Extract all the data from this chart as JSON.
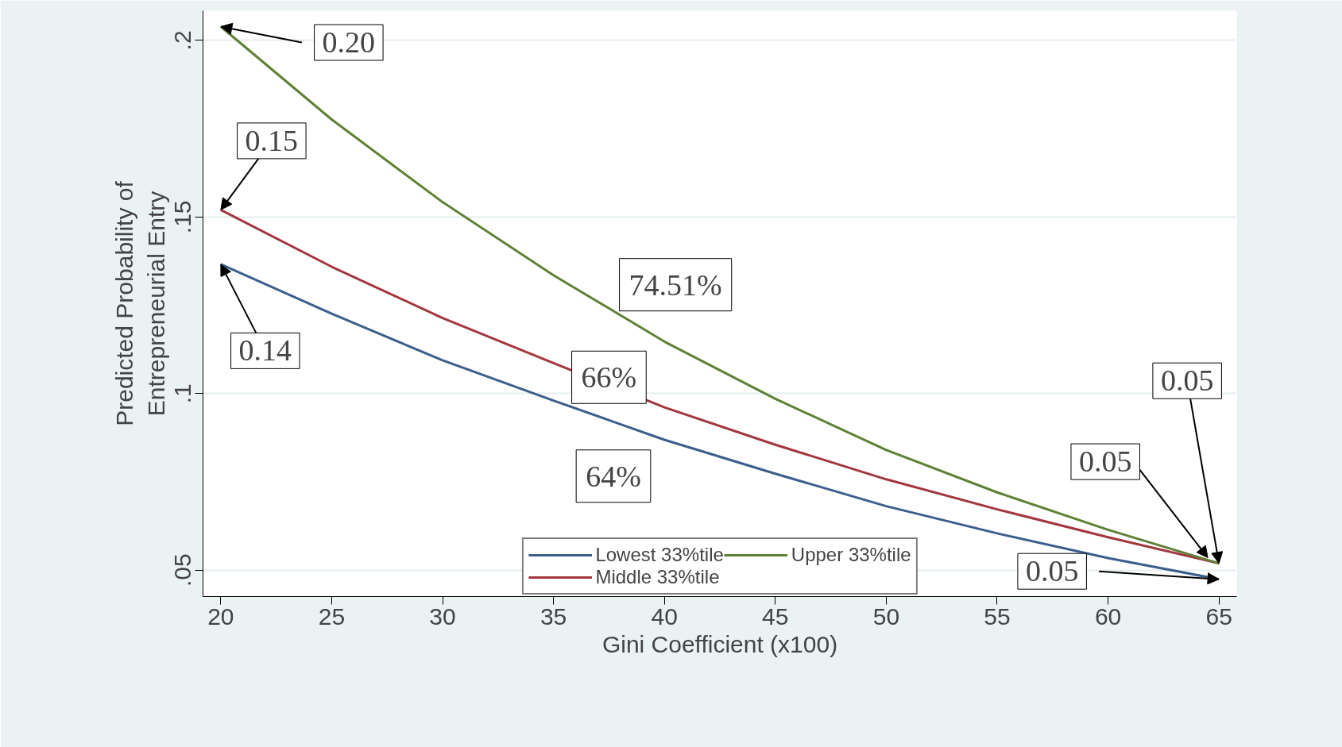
{
  "chart_data": {
    "type": "line",
    "xlabel": "Gini Coefficient (x100)",
    "ylabel": "Predicted Probability of\nEntrepreneurial Entry",
    "x": [
      20,
      25,
      30,
      35,
      40,
      45,
      50,
      55,
      60,
      65
    ],
    "series": [
      {
        "name": "Lowest 33%tile",
        "color": "#3b5e8c",
        "values": [
          0.1366,
          0.1226,
          0.1094,
          0.098,
          0.0869,
          0.0773,
          0.0681,
          0.0604,
          0.0534,
          0.0474
        ]
      },
      {
        "name": "Middle 33%tile",
        "color": "#a3363f",
        "values": [
          0.152,
          0.1359,
          0.1214,
          0.1086,
          0.0961,
          0.0855,
          0.0757,
          0.0672,
          0.0593,
          0.0519
        ]
      },
      {
        "name": "Upper 33%tile",
        "color": "#5e8135",
        "values": [
          0.2039,
          0.1776,
          0.1542,
          0.1335,
          0.1147,
          0.0985,
          0.084,
          0.072,
          0.0614,
          0.0519
        ]
      }
    ],
    "xlim": [
      19.2,
      65.8
    ],
    "ylim": [
      0.0425,
      0.2084
    ],
    "xticks": [
      20,
      25,
      30,
      35,
      40,
      45,
      50,
      55,
      60,
      65
    ],
    "yticks": [
      {
        "value": 0.05,
        "label": ".05"
      },
      {
        "value": 0.1,
        "label": ".1"
      },
      {
        "value": 0.15,
        "label": ".15"
      },
      {
        "value": 0.2,
        "label": ".2"
      }
    ],
    "grid": "y",
    "legend": "bottom",
    "line_style": "solid",
    "marker": "none",
    "annotations": [
      {
        "text": "0.20",
        "x": 20,
        "y": 0.2039
      },
      {
        "text": "0.15",
        "x": 20,
        "y": 0.152
      },
      {
        "text": "0.14",
        "x": 20,
        "y": 0.1366
      },
      {
        "text": "0.05",
        "x": 64.5,
        "y": 0.0535
      },
      {
        "text": "0.05",
        "x": 65,
        "y": 0.0474
      },
      {
        "text": "0.05",
        "x": 65,
        "y": 0.0519
      },
      "74.51%",
      "66%",
      "64%"
    ]
  }
}
